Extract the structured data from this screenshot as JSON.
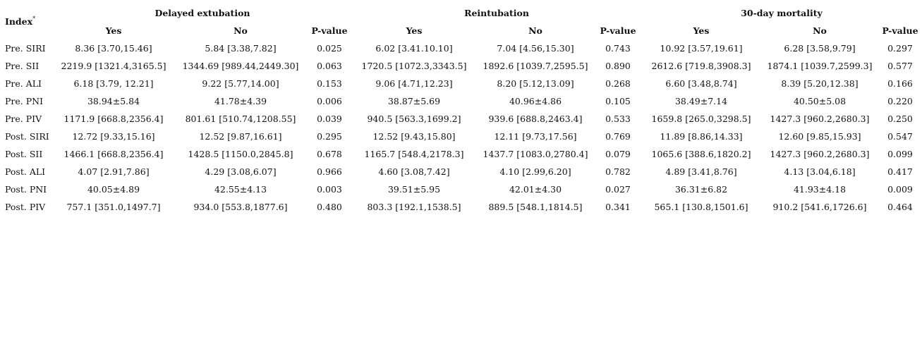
{
  "table": {
    "index_header": "Index",
    "index_marker": "*",
    "groups": [
      "Delayed extubation",
      "Reintubation",
      "30-day mortality"
    ],
    "subheaders": [
      "Yes",
      "No",
      "P-value",
      "Yes",
      "No",
      "P-value",
      "Yes",
      "No",
      "P-value"
    ],
    "rows": [
      {
        "index": "Pre. SIRI",
        "cells": [
          "8.36 [3.70,15.46]",
          "5.84 [3.38,7.82]",
          "0.025",
          "6.02 [3.41.10.10]",
          "7.04 [4.56,15.30]",
          "0.743",
          "10.92 [3.57,19.61]",
          "6.28 [3.58,9.79]",
          "0.297"
        ]
      },
      {
        "index": "Pre. SII",
        "cells": [
          "2219.9 [1321.4,3165.5]",
          "1344.69 [989.44,2449.30]",
          "0.063",
          "1720.5 [1072.3,3343.5]",
          "1892.6 [1039.7,2595.5]",
          "0.890",
          "2612.6 [719.8,3908.3]",
          "1874.1 [1039.7,2599.3]",
          "0.577"
        ]
      },
      {
        "index": "Pre. ALI",
        "cells": [
          "6.18 [3.79, 12.21]",
          "9.22 [5.77,14.00]",
          "0.153",
          "9.06 [4.71,12.23]",
          "8.20 [5.12,13.09]",
          "0.268",
          "6.60 [3.48,8.74]",
          "8.39 [5.20,12.38]",
          "0.166"
        ]
      },
      {
        "index": "Pre. PNI",
        "cells": [
          "38.94±5.84",
          "41.78±4.39",
          "0.006",
          "38.87±5.69",
          "40.96±4.86",
          "0.105",
          "38.49±7.14",
          "40.50±5.08",
          "0.220"
        ]
      },
      {
        "index": "Pre. PIV",
        "cells": [
          "1171.9 [668.8,2356.4]",
          "801.61 [510.74,1208.55]",
          "0.039",
          "940.5 [563.3,1699.2]",
          "939.6 [688.8,2463.4]",
          "0.533",
          "1659.8 [265.0,3298.5]",
          "1427.3 [960.2,2680.3]",
          "0.250"
        ]
      },
      {
        "index": "Post. SIRI",
        "cells": [
          "12.72 [9.33,15.16]",
          "12.52 [9.87,16.61]",
          "0.295",
          "12.52 [9.43,15.80]",
          "12.11 [9.73,17.56]",
          "0.769",
          "11.89 [8.86,14.33]",
          "12.60 [9.85,15.93]",
          "0.547"
        ]
      },
      {
        "index": "Post. SII",
        "cells": [
          "1466.1 [668.8,2356.4]",
          "1428.5 [1150.0,2845.8]",
          "0.678",
          "1165.7 [548.4,2178.3]",
          "1437.7 [1083.0,2780.4]",
          "0.079",
          "1065.6 [388.6,1820.2]",
          "1427.3 [960.2,2680.3]",
          "0.099"
        ]
      },
      {
        "index": "Post. ALI",
        "cells": [
          "4.07 [2.91,7.86]",
          "4.29 [3.08,6.07]",
          "0.966",
          "4.60 [3.08,7.42]",
          "4.10 [2.99,6.20]",
          "0.782",
          "4.89 [3.41,8.76]",
          "4.13 [3.04,6.18]",
          "0.417"
        ]
      },
      {
        "index": "Post. PNI",
        "cells": [
          "40.05±4.89",
          "42.55±4.13",
          "0.003",
          "39.51±5.95",
          "42.01±4.30",
          "0.027",
          "36.31±6.82",
          "41.93±4.18",
          "0.009"
        ]
      },
      {
        "index": "Post. PIV",
        "cells": [
          "757.1 [351.0,1497.7]",
          "934.0 [553.8,1877.6]",
          "0.480",
          "803.3 [192.1,1538.5]",
          "889.5 [548.1,1814.5]",
          "0.341",
          "565.1 [130.8,1501.6]",
          "910.2 [541.6,1726.6]",
          "0.464"
        ]
      }
    ]
  }
}
